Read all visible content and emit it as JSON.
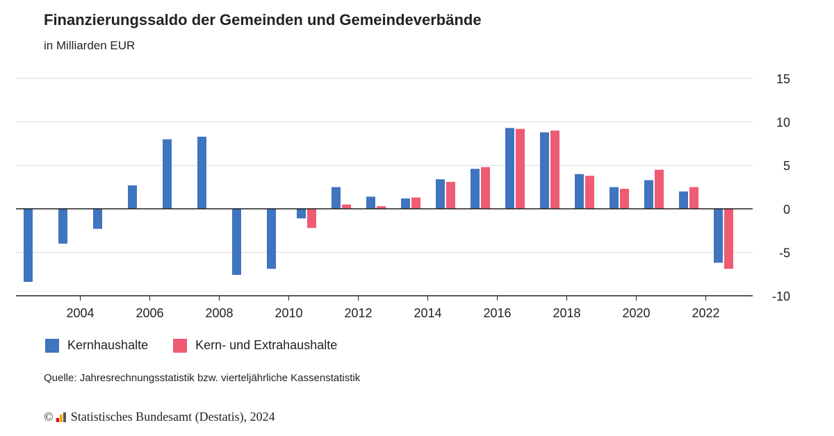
{
  "title": "Finanzierungssaldo der Gemeinden und Gemeindeverbände",
  "subtitle": "in Milliarden EUR",
  "source": "Quelle: Jahresrechnungsstatistik bzw. vierteljährliche Kassenstatistik",
  "copyright": "Statistisches Bundesamt (Destatis), 2024",
  "copyright_symbol": "©",
  "colors": {
    "series1": "#3f74bf",
    "series2": "#ef5b72",
    "logo": [
      "#e2001a",
      "#f0a500",
      "#555555"
    ]
  },
  "chart_data": {
    "type": "bar",
    "x": [
      2003,
      2004,
      2005,
      2006,
      2007,
      2008,
      2009,
      2010,
      2011,
      2012,
      2013,
      2014,
      2015,
      2016,
      2017,
      2018,
      2019,
      2020,
      2021,
      2022,
      2023
    ],
    "x_tick_labels": [
      "2004",
      "2006",
      "2008",
      "2010",
      "2012",
      "2014",
      "2016",
      "2018",
      "2020",
      "2022"
    ],
    "ylim": [
      -10,
      15
    ],
    "y_ticks": [
      -10,
      -5,
      0,
      5,
      10,
      15
    ],
    "y_axis_position": "right",
    "grid": true,
    "legend_position": "bottom-left",
    "series": [
      {
        "name": "Kernhaushalte",
        "values": [
          -8.4,
          -4.0,
          -2.3,
          2.7,
          8.0,
          8.3,
          -7.6,
          -6.9,
          -1.1,
          2.5,
          1.4,
          1.2,
          3.4,
          4.6,
          9.3,
          8.8,
          4.0,
          2.5,
          3.3,
          2.0,
          -6.2
        ]
      },
      {
        "name": "Kern- und Extrahaushalte",
        "values": [
          null,
          null,
          null,
          null,
          null,
          null,
          null,
          null,
          -2.2,
          0.5,
          0.3,
          1.3,
          3.1,
          4.8,
          9.2,
          9.0,
          3.8,
          2.3,
          4.5,
          2.5,
          -6.9
        ]
      }
    ]
  }
}
